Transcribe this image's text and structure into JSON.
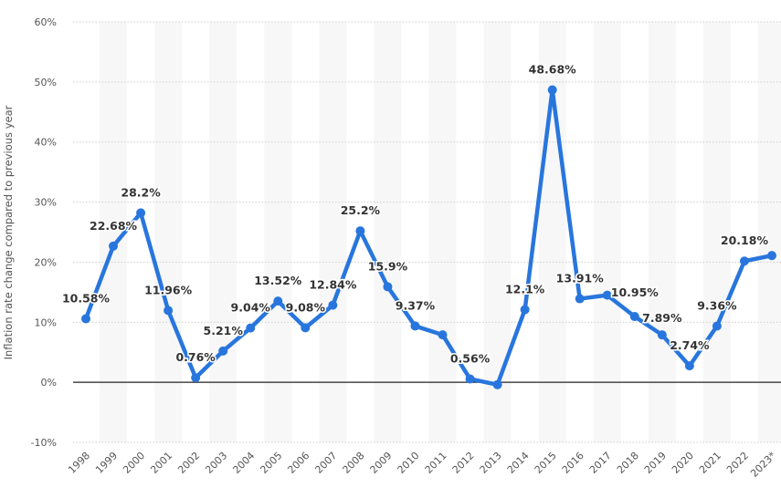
{
  "chart_data": {
    "type": "line",
    "title": "",
    "xlabel": "",
    "ylabel": "Inflation rate change compared to previous year",
    "ylim": [
      -10,
      60
    ],
    "yticks": [
      -10,
      0,
      10,
      20,
      30,
      40,
      50,
      60
    ],
    "ytick_labels": [
      "-10%",
      "0%",
      "10%",
      "20%",
      "30%",
      "40%",
      "50%",
      "60%"
    ],
    "grid": true,
    "categories": [
      "1998",
      "1999",
      "2000",
      "2001",
      "2002",
      "2003",
      "2004",
      "2005",
      "2006",
      "2007",
      "2008",
      "2009",
      "2010",
      "2011",
      "2012",
      "2013",
      "2014",
      "2015",
      "2016",
      "2017",
      "2018",
      "2019",
      "2020",
      "2021",
      "2022",
      "2023*"
    ],
    "series": [
      {
        "name": "Inflation rate change",
        "color": "#2876dd",
        "values": [
          10.58,
          22.68,
          28.2,
          11.96,
          0.76,
          5.21,
          9.04,
          13.52,
          9.08,
          12.84,
          25.2,
          15.9,
          9.37,
          7.9,
          0.56,
          -0.4,
          12.1,
          48.68,
          13.91,
          14.5,
          10.95,
          7.89,
          2.74,
          9.36,
          20.18,
          21.1
        ],
        "labels": [
          "10.58%",
          "22.68%",
          "28.2%",
          "11.96%",
          "0.76%",
          "5.21%",
          "9.04%",
          "13.52%",
          "9.08%",
          "12.84%",
          "25.2%",
          "15.9%",
          "9.37%",
          "",
          "0.56%",
          "",
          "12.1%",
          "48.68%",
          "13.91%",
          "",
          "10.95%",
          "7.89%",
          "2.74%",
          "9.36%",
          "20.18%",
          ""
        ]
      }
    ]
  }
}
